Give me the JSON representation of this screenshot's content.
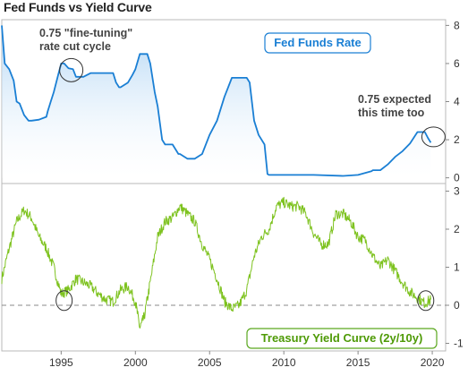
{
  "chart_data": [
    {
      "type": "area",
      "title": "Fed Funds vs Yield Curve",
      "legend_label": "Fed Funds Rate",
      "colors": {
        "line": "#1a7fd4",
        "fill_top": "#a9d1f3",
        "fill_bottom": "#ffffff",
        "legend_border": "#1a7fd4",
        "legend_text": "#1a7fd4"
      },
      "ylim": [
        -0.3,
        8.3
      ],
      "y_ticks": [
        "0",
        "2",
        "4",
        "6",
        "8"
      ],
      "x": [
        1991.0,
        1991.2,
        1991.5,
        1991.8,
        1992.0,
        1992.2,
        1992.5,
        1992.8,
        1993.0,
        1993.5,
        1994.0,
        1994.1,
        1994.3,
        1994.5,
        1994.8,
        1995.0,
        1995.2,
        1995.5,
        1995.8,
        1996.0,
        1996.5,
        1997.0,
        1997.2,
        1997.5,
        1998.0,
        1998.5,
        1998.7,
        1998.9,
        1999.0,
        1999.5,
        1999.8,
        2000.0,
        2000.3,
        2000.5,
        2000.8,
        2001.0,
        2001.3,
        2001.5,
        2001.8,
        2002.0,
        2002.5,
        2002.9,
        2003.0,
        2003.5,
        2004.0,
        2004.5,
        2005.0,
        2005.5,
        2006.0,
        2006.5,
        2007.0,
        2007.5,
        2007.7,
        2008.0,
        2008.3,
        2008.7,
        2008.9,
        2009.0,
        2010.0,
        2012.0,
        2014.0,
        2015.0,
        2015.9,
        2016.0,
        2016.5,
        2017.0,
        2017.5,
        2018.0,
        2018.5,
        2019.0,
        2019.5,
        2019.7,
        2019.9
      ],
      "values": [
        8.0,
        6.0,
        5.7,
        5.1,
        4.0,
        3.9,
        3.3,
        3.0,
        3.0,
        3.05,
        3.2,
        3.5,
        4.0,
        4.5,
        5.4,
        6.0,
        6.0,
        5.75,
        5.7,
        5.3,
        5.3,
        5.5,
        5.5,
        5.5,
        5.5,
        5.5,
        5.0,
        4.75,
        4.75,
        5.0,
        5.4,
        5.7,
        6.5,
        6.5,
        6.5,
        6.0,
        4.5,
        3.75,
        2.0,
        1.75,
        1.75,
        1.25,
        1.25,
        1.0,
        1.0,
        1.25,
        2.25,
        3.0,
        4.25,
        5.25,
        5.25,
        5.25,
        5.0,
        3.0,
        2.25,
        1.75,
        0.2,
        0.15,
        0.15,
        0.15,
        0.1,
        0.15,
        0.35,
        0.4,
        0.4,
        0.7,
        1.1,
        1.4,
        1.8,
        2.4,
        2.4,
        2.1,
        1.85
      ],
      "annotations": [
        {
          "text_lines": [
            "0.75 \"fine-tuning\"",
            "rate cut cycle"
          ],
          "x": 1995.8,
          "y": 5.7
        },
        {
          "text_lines": [
            "0.75 expected",
            "this time too"
          ],
          "x": 2019.9,
          "y": 2.1
        }
      ]
    },
    {
      "type": "line",
      "legend_label": "Treasury Yield Curve (2y/10y)",
      "colors": {
        "line": "#7dc21e",
        "baseline": "#888888",
        "legend_border": "#5aa81e",
        "legend_text": "#4e9a06"
      },
      "ylim": [
        -1.2,
        3.2
      ],
      "y_ticks": [
        "-1",
        "0",
        "1",
        "2",
        "3"
      ],
      "x_ticks": [
        "1995",
        "2000",
        "2005",
        "2010",
        "2015",
        "2020"
      ],
      "xlim": [
        1991.0,
        2020.9
      ],
      "x": [
        1991.0,
        1991.5,
        1992.0,
        1992.5,
        1993.0,
        1993.5,
        1994.0,
        1994.5,
        1995.0,
        1995.5,
        1996.0,
        1996.5,
        1997.0,
        1997.5,
        1998.0,
        1998.5,
        1999.0,
        1999.5,
        2000.0,
        2000.3,
        2000.6,
        2001.0,
        2001.5,
        2002.0,
        2002.5,
        2003.0,
        2003.5,
        2004.0,
        2004.5,
        2005.0,
        2005.5,
        2006.0,
        2006.5,
        2007.0,
        2007.5,
        2008.0,
        2008.5,
        2009.0,
        2009.5,
        2010.0,
        2010.5,
        2011.0,
        2011.5,
        2012.0,
        2012.5,
        2013.0,
        2013.5,
        2014.0,
        2014.5,
        2015.0,
        2015.5,
        2016.0,
        2016.5,
        2017.0,
        2017.5,
        2018.0,
        2018.5,
        2019.0,
        2019.5,
        2019.9
      ],
      "values": [
        0.7,
        1.5,
        2.2,
        2.5,
        2.3,
        1.8,
        1.5,
        1.0,
        0.3,
        0.4,
        0.7,
        0.6,
        0.5,
        0.3,
        0.15,
        0.1,
        0.4,
        0.5,
        0.1,
        -0.6,
        -0.3,
        0.6,
        1.8,
        2.2,
        2.3,
        2.6,
        2.4,
        2.2,
        1.6,
        1.2,
        0.7,
        0.1,
        -0.1,
        0.0,
        0.4,
        1.3,
        1.8,
        2.0,
        2.6,
        2.7,
        2.6,
        2.6,
        2.4,
        1.9,
        1.6,
        1.6,
        2.4,
        2.4,
        2.2,
        1.8,
        1.7,
        1.3,
        1.0,
        1.2,
        0.9,
        0.6,
        0.35,
        0.2,
        0.05,
        0.15
      ],
      "annotations": [
        {
          "x": 1995.2,
          "y": 0.1
        },
        {
          "x": 2019.5,
          "y": 0.1
        }
      ]
    }
  ]
}
